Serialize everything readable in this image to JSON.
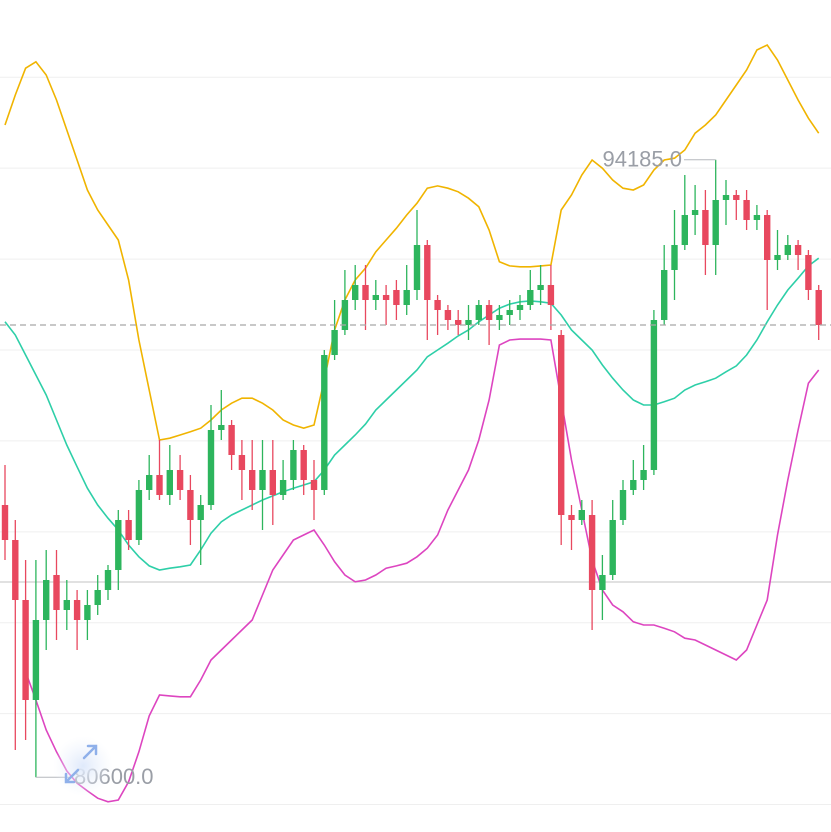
{
  "chart_data": {
    "type": "candlestick",
    "up_color": "#2db55d",
    "down_color": "#e8485f",
    "ylim": [
      79396,
      97700
    ],
    "yticks": [
      80000,
      82000,
      84000,
      86000,
      88000,
      90000,
      92000,
      94000,
      96000
    ],
    "grid": true,
    "open": [
      86590,
      85820,
      84500,
      82300,
      84060,
      85050,
      84280,
      84500,
      84060,
      84390,
      84720,
      85160,
      86260,
      85820,
      86920,
      87250,
      86810,
      87360,
      86920,
      86260,
      86590,
      88240,
      88350,
      87690,
      87360,
      86920,
      87360,
      86810,
      87140,
      87800,
      87140,
      86920,
      89890,
      90440,
      91100,
      91430,
      91100,
      91210,
      91320,
      90990,
      91320,
      92310,
      91100,
      90880,
      90660,
      90550,
      90660,
      90990,
      90660,
      90770,
      90880,
      90990,
      91320,
      91430,
      90330,
      86370,
      86260,
      86370,
      84720,
      85050,
      86260,
      86920,
      87140,
      87360,
      90660,
      91760,
      92310,
      92970,
      93080,
      92310,
      93300,
      93410,
      93300,
      92860,
      92970,
      91980,
      92090,
      92310,
      92090,
      91320
    ],
    "high": [
      87470,
      86260,
      85380,
      85380,
      85600,
      85600,
      84940,
      84720,
      84720,
      85050,
      85270,
      86480,
      86480,
      87140,
      87690,
      88020,
      87910,
      87690,
      87250,
      86810,
      88790,
      89120,
      88460,
      88020,
      88020,
      88020,
      88020,
      87580,
      88020,
      87910,
      87580,
      90000,
      91100,
      91760,
      91870,
      91870,
      91540,
      91430,
      91540,
      91870,
      93080,
      92420,
      91210,
      90990,
      90880,
      90990,
      91100,
      91100,
      90990,
      91100,
      91210,
      91760,
      91870,
      91870,
      90440,
      86590,
      86700,
      86700,
      85490,
      86700,
      87140,
      87580,
      87910,
      90880,
      92310,
      93080,
      93850,
      93630,
      93520,
      94185,
      93740,
      93520,
      93520,
      93190,
      93080,
      92640,
      92530,
      92420,
      92200,
      91430
    ],
    "low": [
      85380,
      81200,
      81420,
      80600,
      83400,
      83620,
      83840,
      83400,
      83620,
      84170,
      84500,
      84720,
      85600,
      85710,
      86700,
      86700,
      86590,
      86700,
      85710,
      85270,
      86480,
      88020,
      87360,
      86700,
      86480,
      86040,
      86150,
      86700,
      86920,
      86810,
      86260,
      86810,
      89780,
      90330,
      90880,
      90440,
      90880,
      90550,
      90660,
      90770,
      91100,
      90220,
      90330,
      90440,
      90330,
      90220,
      90550,
      90110,
      90440,
      90550,
      90660,
      90880,
      90990,
      90440,
      85710,
      85600,
      86150,
      83840,
      84060,
      84940,
      86150,
      86810,
      86920,
      87250,
      90550,
      91100,
      92200,
      92530,
      91650,
      91650,
      92750,
      92860,
      92640,
      92640,
      90880,
      91760,
      91980,
      91760,
      91100,
      90220
    ],
    "close": [
      85820,
      84500,
      82300,
      84060,
      84940,
      84280,
      84500,
      84060,
      84390,
      84720,
      85160,
      86260,
      85820,
      86920,
      87250,
      86810,
      87360,
      86920,
      86260,
      86590,
      88240,
      88350,
      87690,
      87360,
      86920,
      87360,
      86810,
      87140,
      87800,
      87140,
      86920,
      89890,
      90440,
      91100,
      91430,
      91100,
      91210,
      91100,
      90990,
      91320,
      92310,
      91100,
      90880,
      90660,
      90550,
      90660,
      90990,
      90660,
      90770,
      90880,
      90990,
      91320,
      91430,
      90990,
      86370,
      86260,
      86480,
      84720,
      85050,
      86260,
      86920,
      87140,
      87360,
      90660,
      91760,
      92310,
      92970,
      93080,
      92310,
      93300,
      93410,
      93300,
      92860,
      92970,
      91980,
      92090,
      92310,
      92090,
      91320,
      90550
    ],
    "bands": {
      "upper": {
        "color": "#f0b400",
        "values": [
          94950,
          95610,
          96200,
          96340,
          96050,
          95500,
          94840,
          94180,
          93520,
          93080,
          92750,
          92420,
          91540,
          90220,
          89120,
          88020,
          88060,
          88130,
          88200,
          88280,
          88460,
          88680,
          88830,
          88940,
          88940,
          88830,
          88680,
          88460,
          88350,
          88280,
          88350,
          89340,
          90440,
          91100,
          91540,
          91800,
          92160,
          92420,
          92680,
          92970,
          93230,
          93560,
          93610,
          93560,
          93480,
          93340,
          93150,
          92640,
          91940,
          91850,
          91830,
          91830,
          91850,
          91870,
          93080,
          93410,
          93850,
          94180,
          94000,
          93740,
          93560,
          93520,
          93630,
          93960,
          94180,
          94220,
          94400,
          94770,
          94950,
          95170,
          95500,
          95830,
          96160,
          96600,
          96710,
          96380,
          95940,
          95500,
          95100,
          94770
        ]
      },
      "middle": {
        "color": "#2ecfa8",
        "values": [
          90620,
          90330,
          89890,
          89450,
          89010,
          88460,
          87910,
          87430,
          86960,
          86590,
          86300,
          86040,
          85710,
          85450,
          85250,
          85160,
          85200,
          85230,
          85270,
          85600,
          85970,
          86220,
          86370,
          86480,
          86590,
          86700,
          86790,
          86880,
          86960,
          87030,
          87100,
          87360,
          87690,
          87910,
          88130,
          88370,
          88680,
          88900,
          89120,
          89340,
          89560,
          89850,
          90000,
          90150,
          90310,
          90440,
          90620,
          90770,
          90920,
          91010,
          91060,
          91080,
          91060,
          91030,
          90770,
          90440,
          90220,
          90000,
          89670,
          89380,
          89120,
          88900,
          88790,
          88790,
          88860,
          88940,
          89120,
          89230,
          89300,
          89380,
          89520,
          89650,
          89890,
          90220,
          90620,
          90990,
          91320,
          91580,
          91850,
          92020
        ]
      },
      "lower": {
        "color": "#dd45c0",
        "values": [
          null,
          null,
          82920,
          82300,
          81640,
          81160,
          80740,
          80470,
          80300,
          80140,
          80060,
          80100,
          80500,
          81160,
          81950,
          82410,
          82390,
          82370,
          82370,
          82740,
          83180,
          83400,
          83620,
          83840,
          84060,
          84610,
          85160,
          85490,
          85820,
          85930,
          86040,
          85710,
          85340,
          85050,
          84900,
          84940,
          85050,
          85200,
          85250,
          85310,
          85450,
          85640,
          85930,
          86480,
          86920,
          87360,
          88020,
          88900,
          90110,
          90220,
          90240,
          90240,
          90240,
          90220,
          88900,
          87580,
          86480,
          85380,
          84720,
          84390,
          84240,
          84020,
          83950,
          83950,
          83880,
          83800,
          83660,
          83620,
          83510,
          83400,
          83290,
          83180,
          83400,
          83950,
          84500,
          85930,
          87140,
          88240,
          89270,
          89560
        ]
      }
    },
    "annotations": {
      "max": {
        "value": 94185,
        "label": "94185.0"
      },
      "min": {
        "value": 80600,
        "label": "80600.0"
      }
    }
  }
}
